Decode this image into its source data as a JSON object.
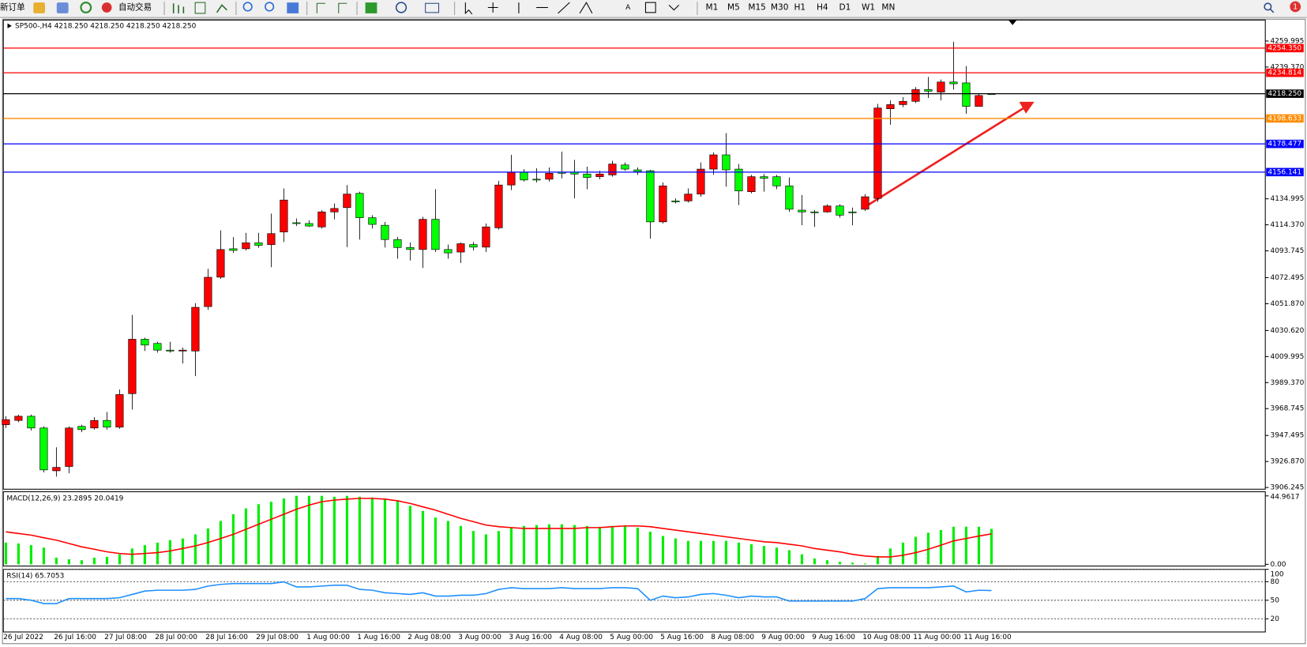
{
  "toolbar": {
    "new_order": "新订单",
    "auto_trading": "自动交易",
    "timeframes": [
      "M1",
      "M5",
      "M15",
      "M30",
      "H1",
      "H4",
      "D1",
      "W1",
      "MN"
    ],
    "alerts": "1"
  },
  "chart_data": [
    {
      "type": "candlestick",
      "title": "SP500-,H4 4218.250 4218.250 4218.250 4218.250",
      "categories": [
        "26 Jul 2022",
        null,
        null,
        null,
        "26 Jul 16:00",
        null,
        null,
        null,
        "27 Jul 08:00",
        null,
        null,
        null,
        "28 Jul 00:00",
        null,
        null,
        null,
        "28 Jul 16:00",
        null,
        null,
        null,
        "29 Jul 08:00",
        null,
        null,
        null,
        "1 Aug 00:00",
        null,
        null,
        null,
        "1 Aug 16:00",
        null,
        null,
        null,
        "2 Aug 08:00",
        null,
        null,
        null,
        "3 Aug 00:00",
        null,
        null,
        null,
        "3 Aug 16:00",
        null,
        null,
        null,
        "4 Aug 08:00",
        null,
        null,
        null,
        "5 Aug 00:00",
        null,
        null,
        null,
        "5 Aug 16:00",
        null,
        null,
        null,
        "8 Aug 08:00",
        null,
        null,
        null,
        "9 Aug 00:00",
        null,
        null,
        null,
        "9 Aug 16:00",
        null,
        null,
        null,
        "10 Aug 08:00",
        null,
        null,
        null,
        "11 Aug 00:00",
        null,
        null,
        null,
        "11 Aug 16:00",
        null,
        null
      ],
      "open": [
        3956.0,
        3959.4,
        3962.7,
        3953.4,
        3919.5,
        3922.9,
        3954.7,
        3953.4,
        3959.4,
        3954.1,
        3980.6,
        4023.7,
        4020.4,
        4015.1,
        4014.4,
        4014.4,
        4049.6,
        4072.9,
        4095.4,
        4095.4,
        4100.1,
        4098.7,
        4108.7,
        4116.0,
        4115.4,
        4112.7,
        4124.6,
        4128.0,
        4139.3,
        4120.0,
        4114.0,
        4102.7,
        4096.4,
        4094.8,
        4118.7,
        4094.8,
        4092.8,
        4098.7,
        4096.7,
        4112.0,
        4145.9,
        4155.9,
        4150.5,
        4150.5,
        4155.9,
        4155.9,
        4154.6,
        4152.5,
        4153.9,
        4161.8,
        4157.9,
        4157.2,
        4116.7,
        4133.3,
        4133.3,
        4138.7,
        4158.5,
        4169.8,
        4158.5,
        4140.6,
        4152.5,
        4152.5,
        4145.2,
        4126.0,
        4124.6,
        4124.6,
        4129.3,
        4124.6,
        4126.7,
        4135.3,
        4206.3,
        4209.6,
        4212.2,
        4221.5,
        4219.5,
        4227.5,
        4226.8,
        4208.2,
        4218.25
      ],
      "high": [
        3962.7,
        3964.0,
        3964.0,
        3954.7,
        3938.1,
        3954.7,
        3956.0,
        3962.0,
        3966.0,
        3983.9,
        4043.0,
        4025.0,
        4021.7,
        4021.7,
        4017.1,
        4052.3,
        4079.5,
        4110.0,
        4104.7,
        4108.0,
        4108.0,
        4123.3,
        4143.2,
        4119.4,
        4118.0,
        4126.0,
        4131.3,
        4145.9,
        4140.6,
        4122.0,
        4116.7,
        4104.7,
        4100.4,
        4120.7,
        4142.6,
        4098.7,
        4100.4,
        4100.7,
        4115.4,
        4149.2,
        4169.8,
        4158.5,
        4159.2,
        4159.8,
        4172.4,
        4165.8,
        4160.5,
        4157.2,
        4165.1,
        4163.8,
        4159.8,
        4157.9,
        4147.9,
        4135.3,
        4143.2,
        4163.8,
        4171.8,
        4187.0,
        4162.5,
        4153.9,
        4154.6,
        4153.9,
        4151.9,
        4138.0,
        4126.0,
        4130.6,
        4130.6,
        4128.0,
        4138.7,
        4210.2,
        4212.9,
        4215.6,
        4223.5,
        4231.5,
        4229.5,
        4259.4,
        4240.1,
        4218.2,
        4218.25
      ],
      "low": [
        3953.4,
        3958.0,
        3951.4,
        3918.2,
        3914.9,
        3917.6,
        3950.1,
        3952.1,
        3952.1,
        3952.7,
        3968.0,
        4014.4,
        4013.1,
        4013.1,
        4004.5,
        3994.5,
        4047.0,
        4071.5,
        4092.1,
        4094.1,
        4096.1,
        4080.8,
        4100.7,
        4113.4,
        4112.7,
        4111.4,
        4118.7,
        4096.7,
        4102.7,
        4111.4,
        4096.4,
        4087.5,
        4086.1,
        4080.2,
        4092.8,
        4087.5,
        4084.1,
        4094.1,
        4092.8,
        4110.7,
        4141.9,
        4148.6,
        4147.9,
        4148.6,
        4151.2,
        4135.3,
        4142.6,
        4150.5,
        4152.5,
        4157.2,
        4153.9,
        4103.4,
        4115.4,
        4131.3,
        4132.0,
        4136.6,
        4153.9,
        4144.5,
        4130.0,
        4139.3,
        4140.6,
        4142.6,
        4124.6,
        4114.0,
        4112.7,
        4124.0,
        4120.0,
        4114.0,
        4125.3,
        4132.6,
        4193.7,
        4207.6,
        4210.9,
        4214.9,
        4212.9,
        4221.5,
        4202.3,
        4208.2,
        4218.25
      ],
      "close": [
        3960.0,
        3962.7,
        3953.4,
        3920.2,
        3922.2,
        3953.4,
        3952.1,
        3959.4,
        3954.1,
        3979.9,
        4023.7,
        4019.1,
        4015.1,
        4014.4,
        4015.1,
        4049.0,
        4072.8,
        4094.8,
        4094.1,
        4100.1,
        4098.1,
        4107.4,
        4134.0,
        4115.4,
        4113.4,
        4124.6,
        4127.3,
        4138.7,
        4120.0,
        4114.7,
        4102.7,
        4096.4,
        4094.8,
        4118.7,
        4094.8,
        4092.1,
        4099.4,
        4096.7,
        4112.7,
        4145.9,
        4155.9,
        4149.9,
        4149.9,
        4155.2,
        4155.2,
        4154.6,
        4151.9,
        4154.6,
        4162.5,
        4158.5,
        4156.5,
        4116.7,
        4145.2,
        4132.6,
        4138.7,
        4158.5,
        4169.8,
        4157.9,
        4141.2,
        4152.5,
        4151.2,
        4145.2,
        4126.7,
        4124.6,
        4124.0,
        4129.3,
        4122.0,
        4124.0,
        4136.6,
        4206.9,
        4209.6,
        4212.2,
        4221.5,
        4220.2,
        4227.5,
        4226.1,
        4208.2,
        4216.8,
        4218.25
      ],
      "up_color": "#ff0000",
      "down_color": "#00ff00",
      "ylim": [
        3904.9,
        4276.6
      ],
      "yticks": [
        4259.995,
        {
          "value": 4239.37,
          "label": "4239.370"
        },
        4134.995,
        {
          "value": 4114.37,
          "label": "4114.370"
        },
        4093.745,
        4072.495,
        {
          "value": 4051.87,
          "label": "4051.870"
        },
        {
          "value": 4030.62,
          "label": "4030.620"
        },
        4009.995,
        {
          "value": 3989.37,
          "label": "3989.370"
        },
        3968.745,
        3947.495,
        {
          "value": 3926.87,
          "label": "3926.870"
        },
        3906.245
      ],
      "lines": [
        {
          "value": 4254.35,
          "label": "4254.350",
          "color": "#ff0000"
        },
        {
          "value": 4234.814,
          "label": "4234.814",
          "color": "#ff0000"
        },
        {
          "value": 4218.25,
          "label": "4218.250",
          "color": "#000000"
        },
        {
          "value": 4198.633,
          "label": "4198.633",
          "color": "#ff8c00"
        },
        {
          "value": 4178.477,
          "label": "4178.477",
          "color": "#0000ff"
        },
        {
          "value": 4156.141,
          "label": "4156.141",
          "color": "#0000ff"
        }
      ]
    },
    {
      "type": "macd",
      "title": "MACD(12,26,9) 23.2895 20.0419",
      "series": [
        {
          "style": "bar",
          "color": "#00ee00",
          "values": [
            14.3,
            13.7,
            12.6,
            11.0,
            4.4,
            3.3,
            2.7,
            4.4,
            4.9,
            6.6,
            10.4,
            12.6,
            14.3,
            15.9,
            17.0,
            19.7,
            23.6,
            28.5,
            32.9,
            36.7,
            39.5,
            41.1,
            43.3,
            45.0,
            45.0,
            45.0,
            44.4,
            45.0,
            44.4,
            43.9,
            42.8,
            41.7,
            38.4,
            35.1,
            30.7,
            28.5,
            25.2,
            21.9,
            19.7,
            21.9,
            24.1,
            25.2,
            25.8,
            26.3,
            26.3,
            25.8,
            25.2,
            24.7,
            25.2,
            25.2,
            24.1,
            21.4,
            18.6,
            17.0,
            15.4,
            15.4,
            15.4,
            15.4,
            14.3,
            13.2,
            12.1,
            11.0,
            9.3,
            6.6,
            3.8,
            2.7,
            1.6,
            1.1,
            0.5,
            5.5,
            10.4,
            14.3,
            18.1,
            20.8,
            22.5,
            24.7,
            24.7,
            24.7,
            23.3
          ]
        },
        {
          "style": "line",
          "color": "#ff0000",
          "values": [
            21.4,
            20.3,
            19.2,
            17.5,
            15.9,
            13.7,
            11.5,
            9.9,
            8.2,
            7.1,
            6.6,
            7.1,
            7.7,
            8.8,
            10.4,
            12.1,
            14.3,
            17.0,
            19.7,
            23.0,
            26.3,
            29.6,
            32.9,
            36.2,
            38.9,
            41.1,
            42.2,
            42.8,
            43.3,
            43.3,
            42.8,
            41.7,
            40.0,
            37.8,
            35.6,
            32.9,
            30.2,
            28.0,
            25.8,
            24.7,
            24.1,
            23.6,
            23.6,
            23.6,
            23.6,
            23.6,
            24.1,
            24.1,
            24.7,
            25.2,
            25.2,
            24.7,
            23.6,
            22.5,
            21.4,
            20.3,
            19.2,
            18.1,
            17.0,
            15.9,
            14.8,
            14.3,
            13.2,
            12.1,
            10.4,
            9.3,
            8.2,
            6.6,
            5.5,
            4.9,
            4.9,
            6.0,
            7.7,
            9.9,
            12.6,
            15.4,
            17.0,
            18.6,
            20.0
          ]
        }
      ],
      "ylim": [
        -1.1,
        47.7
      ],
      "yticks": [
        44.9617,
        {
          "value": 0,
          "label": "0.00"
        }
      ]
    },
    {
      "type": "rsi",
      "title": "RSI(14) 65.7053",
      "series": [
        {
          "style": "line",
          "color": "#1e90ff",
          "values": [
            52.7,
            52.7,
            50.0,
            44.6,
            44.6,
            52.7,
            52.7,
            52.7,
            52.7,
            54.1,
            59.5,
            64.9,
            66.2,
            66.2,
            66.2,
            67.6,
            73.0,
            75.7,
            77.0,
            77.0,
            77.0,
            77.0,
            79.7,
            71.6,
            71.6,
            73.0,
            74.3,
            74.3,
            67.6,
            66.2,
            62.2,
            60.8,
            59.5,
            62.2,
            56.8,
            56.8,
            58.1,
            58.1,
            60.8,
            67.6,
            70.3,
            68.9,
            68.9,
            68.9,
            70.3,
            68.9,
            68.9,
            68.9,
            70.3,
            70.3,
            68.9,
            50.0,
            56.8,
            54.1,
            55.4,
            59.5,
            60.8,
            58.1,
            54.1,
            56.8,
            55.4,
            55.4,
            48.6,
            48.6,
            48.6,
            48.6,
            48.6,
            48.6,
            52.7,
            68.9,
            70.3,
            70.3,
            70.3,
            70.3,
            71.6,
            73.0,
            63.5,
            66.2,
            65.7
          ]
        }
      ],
      "ylim": [
        0,
        100
      ],
      "yticks": [
        100,
        80,
        50,
        20
      ],
      "grid": "dashed"
    }
  ]
}
